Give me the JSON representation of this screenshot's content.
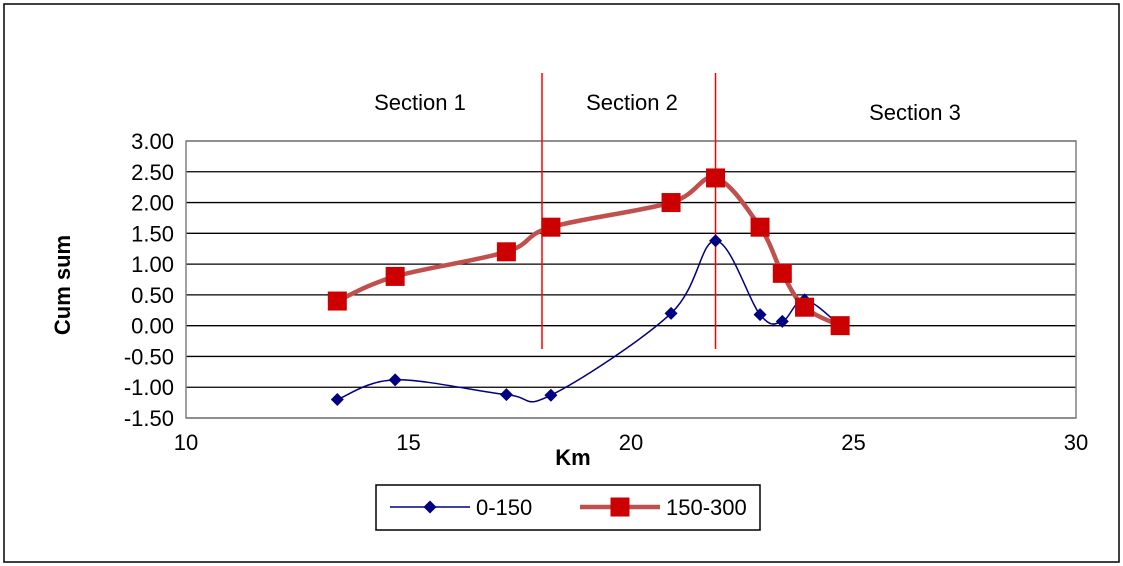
{
  "chart_data": {
    "type": "line",
    "xlabel": "Km",
    "ylabel": "Cum sum",
    "xlim": [
      10,
      30
    ],
    "ylim": [
      -1.5,
      3.0
    ],
    "x_ticks": [
      10,
      15,
      20,
      25,
      30
    ],
    "y_ticks": [
      -1.5,
      -1.0,
      -0.5,
      0.0,
      0.5,
      1.0,
      1.5,
      2.0,
      2.5,
      3.0
    ],
    "x_tick_labels": [
      "10",
      "15",
      "20",
      "25",
      "30"
    ],
    "y_tick_labels": [
      "-1.50",
      "-1.00",
      "-0.50",
      "0.00",
      "0.50",
      "1.00",
      "1.50",
      "2.00",
      "2.50",
      "3.00"
    ],
    "grid": "horizontal",
    "legend_position": "bottom",
    "series": [
      {
        "name": "0-150",
        "color": "#000080",
        "marker": "diamond",
        "x": [
          13.4,
          14.7,
          17.2,
          18.2,
          20.9,
          21.9,
          22.9,
          23.4,
          23.9,
          24.7
        ],
        "y": [
          -1.2,
          -0.88,
          -1.12,
          -1.13,
          0.2,
          1.38,
          0.18,
          0.07,
          0.42,
          0.0
        ]
      },
      {
        "name": "150-300",
        "color": "#c0504d",
        "marker_color": "#cc0000",
        "marker": "square",
        "x": [
          13.4,
          14.7,
          17.2,
          18.2,
          20.9,
          21.9,
          22.9,
          23.4,
          23.9,
          24.7
        ],
        "y": [
          0.4,
          0.8,
          1.2,
          1.6,
          2.0,
          2.4,
          1.6,
          0.85,
          0.3,
          0.0
        ]
      }
    ],
    "annotations": {
      "section_lines_x": [
        18.0,
        21.9
      ],
      "section_line_color": "#ff0000",
      "sections": [
        {
          "label": "Section 1"
        },
        {
          "label": "Section 2"
        },
        {
          "label": "Section 3"
        }
      ]
    }
  }
}
